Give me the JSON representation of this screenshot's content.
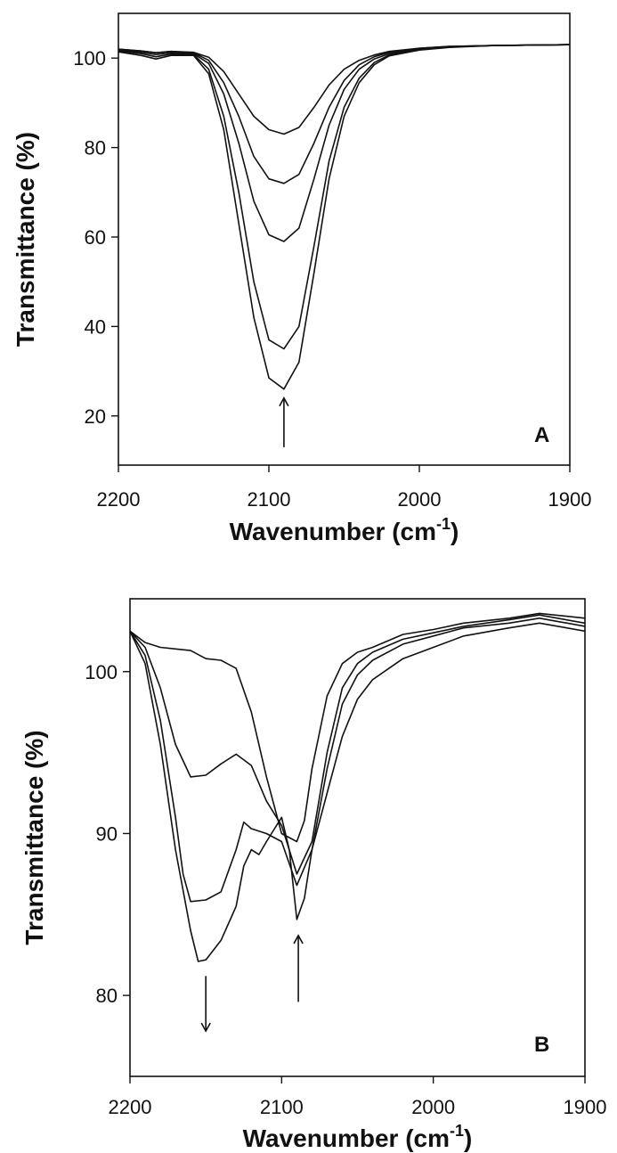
{
  "chart_data": [
    {
      "type": "line",
      "panel_label": "A",
      "xlabel": "Wavenumber (cm",
      "xlabel_sup": "-1",
      "xlabel_end": ")",
      "ylabel": "Transmittance (%)",
      "xlim": [
        2200,
        1900
      ],
      "ylim": [
        9,
        110
      ],
      "x_ticks": [
        2200,
        2100,
        2000,
        1900
      ],
      "y_ticks": [
        20,
        40,
        60,
        80,
        100
      ],
      "grid": false,
      "arrows": [
        {
          "x": 2090,
          "y_from": 13,
          "y_to": 24,
          "direction": "up"
        }
      ],
      "series": [
        {
          "points": [
            [
              2200,
              102
            ],
            [
              2185,
              101.6
            ],
            [
              2175,
              101.2
            ],
            [
              2165,
              101.5
            ],
            [
              2150,
              101.3
            ],
            [
              2140,
              100.2
            ],
            [
              2130,
              97
            ],
            [
              2120,
              92
            ],
            [
              2110,
              87
            ],
            [
              2100,
              84
            ],
            [
              2090,
              83
            ],
            [
              2080,
              84.5
            ],
            [
              2070,
              89
            ],
            [
              2060,
              94
            ],
            [
              2050,
              97.5
            ],
            [
              2040,
              99.5
            ],
            [
              2030,
              100.7
            ],
            [
              2020,
              101.5
            ],
            [
              2000,
              102.2
            ],
            [
              1980,
              102.6
            ],
            [
              1950,
              102.8
            ],
            [
              1900,
              103
            ]
          ]
        },
        {
          "points": [
            [
              2200,
              102
            ],
            [
              2185,
              101.6
            ],
            [
              2175,
              101.2
            ],
            [
              2165,
              101.5
            ],
            [
              2150,
              101.2
            ],
            [
              2140,
              99.5
            ],
            [
              2130,
              94.5
            ],
            [
              2120,
              87
            ],
            [
              2110,
              78
            ],
            [
              2100,
              73
            ],
            [
              2090,
              72
            ],
            [
              2080,
              74
            ],
            [
              2070,
              81
            ],
            [
              2060,
              89
            ],
            [
              2050,
              95
            ],
            [
              2040,
              98.5
            ],
            [
              2030,
              100.3
            ],
            [
              2020,
              101.3
            ],
            [
              2000,
              102.2
            ],
            [
              1980,
              102.6
            ],
            [
              1950,
              102.8
            ],
            [
              1900,
              103
            ]
          ]
        },
        {
          "points": [
            [
              2200,
              101.8
            ],
            [
              2185,
              101.3
            ],
            [
              2175,
              100.8
            ],
            [
              2165,
              101.2
            ],
            [
              2150,
              101
            ],
            [
              2140,
              98.8
            ],
            [
              2130,
              92
            ],
            [
              2120,
              81
            ],
            [
              2110,
              68
            ],
            [
              2100,
              60.5
            ],
            [
              2090,
              59
            ],
            [
              2080,
              62
            ],
            [
              2070,
              73
            ],
            [
              2060,
              85
            ],
            [
              2050,
              93
            ],
            [
              2040,
              97.5
            ],
            [
              2030,
              99.8
            ],
            [
              2020,
              101
            ],
            [
              2000,
              102
            ],
            [
              1980,
              102.5
            ],
            [
              1950,
              102.8
            ],
            [
              1900,
              103
            ]
          ]
        },
        {
          "points": [
            [
              2200,
              101.6
            ],
            [
              2185,
              101
            ],
            [
              2175,
              100.3
            ],
            [
              2165,
              100.9
            ],
            [
              2150,
              100.8
            ],
            [
              2140,
              97.5
            ],
            [
              2130,
              87
            ],
            [
              2120,
              70
            ],
            [
              2110,
              50
            ],
            [
              2100,
              37
            ],
            [
              2090,
              35
            ],
            [
              2080,
              40
            ],
            [
              2070,
              58
            ],
            [
              2060,
              77
            ],
            [
              2050,
              89
            ],
            [
              2040,
              95.5
            ],
            [
              2030,
              99
            ],
            [
              2020,
              100.7
            ],
            [
              2000,
              101.9
            ],
            [
              1980,
              102.5
            ],
            [
              1950,
              102.8
            ],
            [
              1900,
              103
            ]
          ]
        },
        {
          "points": [
            [
              2200,
              101.4
            ],
            [
              2185,
              100.6
            ],
            [
              2175,
              99.8
            ],
            [
              2165,
              100.6
            ],
            [
              2150,
              100.6
            ],
            [
              2140,
              96.5
            ],
            [
              2130,
              84
            ],
            [
              2120,
              63
            ],
            [
              2110,
              42
            ],
            [
              2100,
              28.5
            ],
            [
              2090,
              26
            ],
            [
              2080,
              32
            ],
            [
              2070,
              52
            ],
            [
              2060,
              73
            ],
            [
              2050,
              87
            ],
            [
              2040,
              94.5
            ],
            [
              2030,
              98.5
            ],
            [
              2020,
              100.5
            ],
            [
              2000,
              101.8
            ],
            [
              1980,
              102.4
            ],
            [
              1950,
              102.8
            ],
            [
              1900,
              103
            ]
          ]
        }
      ]
    },
    {
      "type": "line",
      "panel_label": "B",
      "xlabel": "Wavenumber (cm",
      "xlabel_sup": "-1",
      "xlabel_end": ")",
      "ylabel": "Transmittance (%)",
      "xlim": [
        2200,
        1900
      ],
      "ylim": [
        75,
        104.5
      ],
      "x_ticks": [
        2200,
        2100,
        2000,
        1900
      ],
      "y_ticks": [
        80,
        90,
        100
      ],
      "grid": false,
      "arrows": [
        {
          "x": 2150,
          "y_from": 81.2,
          "y_to": 77.8,
          "direction": "down"
        },
        {
          "x": 2089,
          "y_from": 79.6,
          "y_to": 83.7,
          "direction": "up"
        }
      ],
      "series": [
        {
          "points": [
            [
              2200,
              102.5
            ],
            [
              2190,
              101.8
            ],
            [
              2180,
              101.5
            ],
            [
              2170,
              101.4
            ],
            [
              2160,
              101.3
            ],
            [
              2150,
              100.8
            ],
            [
              2140,
              100.7
            ],
            [
              2130,
              100.2
            ],
            [
              2120,
              97.5
            ],
            [
              2110,
              93.5
            ],
            [
              2100,
              90
            ],
            [
              2090,
              89.5
            ],
            [
              2085,
              90.8
            ],
            [
              2080,
              94
            ],
            [
              2070,
              98.5
            ],
            [
              2060,
              100.5
            ],
            [
              2050,
              101.2
            ],
            [
              2040,
              101.5
            ],
            [
              2020,
              102.3
            ],
            [
              2000,
              102.6
            ],
            [
              1980,
              103
            ],
            [
              1950,
              103.3
            ],
            [
              1930,
              103.6
            ],
            [
              1900,
              103.3
            ]
          ]
        },
        {
          "points": [
            [
              2200,
              102.5
            ],
            [
              2190,
              101.5
            ],
            [
              2180,
              99
            ],
            [
              2170,
              95.5
            ],
            [
              2160,
              93.5
            ],
            [
              2150,
              93.6
            ],
            [
              2140,
              94.3
            ],
            [
              2130,
              94.9
            ],
            [
              2120,
              94.2
            ],
            [
              2110,
              92
            ],
            [
              2100,
              90.5
            ],
            [
              2090,
              87.5
            ],
            [
              2080,
              89.5
            ],
            [
              2070,
              95
            ],
            [
              2060,
              99
            ],
            [
              2050,
              100.5
            ],
            [
              2040,
              101.2
            ],
            [
              2020,
              102
            ],
            [
              2000,
              102.4
            ],
            [
              1980,
              102.8
            ],
            [
              1950,
              103.2
            ],
            [
              1930,
              103.5
            ],
            [
              1900,
              103
            ]
          ]
        },
        {
          "points": [
            [
              2200,
              102.5
            ],
            [
              2190,
              101
            ],
            [
              2180,
              97
            ],
            [
              2170,
              91
            ],
            [
              2165,
              87.5
            ],
            [
              2160,
              85.8
            ],
            [
              2150,
              85.9
            ],
            [
              2140,
              86.4
            ],
            [
              2130,
              89
            ],
            [
              2125,
              90.7
            ],
            [
              2120,
              90.3
            ],
            [
              2110,
              90
            ],
            [
              2100,
              89.5
            ],
            [
              2090,
              86.8
            ],
            [
              2080,
              89
            ],
            [
              2070,
              94
            ],
            [
              2060,
              98
            ],
            [
              2050,
              99.8
            ],
            [
              2040,
              100.7
            ],
            [
              2020,
              101.7
            ],
            [
              2000,
              102.2
            ],
            [
              1980,
              102.7
            ],
            [
              1950,
              103
            ],
            [
              1930,
              103.3
            ],
            [
              1900,
              102.8
            ]
          ]
        },
        {
          "points": [
            [
              2200,
              102.5
            ],
            [
              2190,
              100.5
            ],
            [
              2180,
              95.5
            ],
            [
              2170,
              89
            ],
            [
              2160,
              84
            ],
            [
              2155,
              82.1
            ],
            [
              2150,
              82.2
            ],
            [
              2140,
              83.4
            ],
            [
              2130,
              85.5
            ],
            [
              2125,
              88
            ],
            [
              2120,
              89
            ],
            [
              2115,
              88.7
            ],
            [
              2110,
              89.5
            ],
            [
              2100,
              91
            ],
            [
              2095,
              89
            ],
            [
              2090,
              84.7
            ],
            [
              2085,
              86
            ],
            [
              2080,
              89
            ],
            [
              2070,
              92.5
            ],
            [
              2060,
              96
            ],
            [
              2050,
              98.3
            ],
            [
              2040,
              99.5
            ],
            [
              2020,
              100.8
            ],
            [
              2000,
              101.5
            ],
            [
              1980,
              102.2
            ],
            [
              1950,
              102.7
            ],
            [
              1930,
              103
            ],
            [
              1900,
              102.5
            ]
          ]
        }
      ]
    }
  ]
}
